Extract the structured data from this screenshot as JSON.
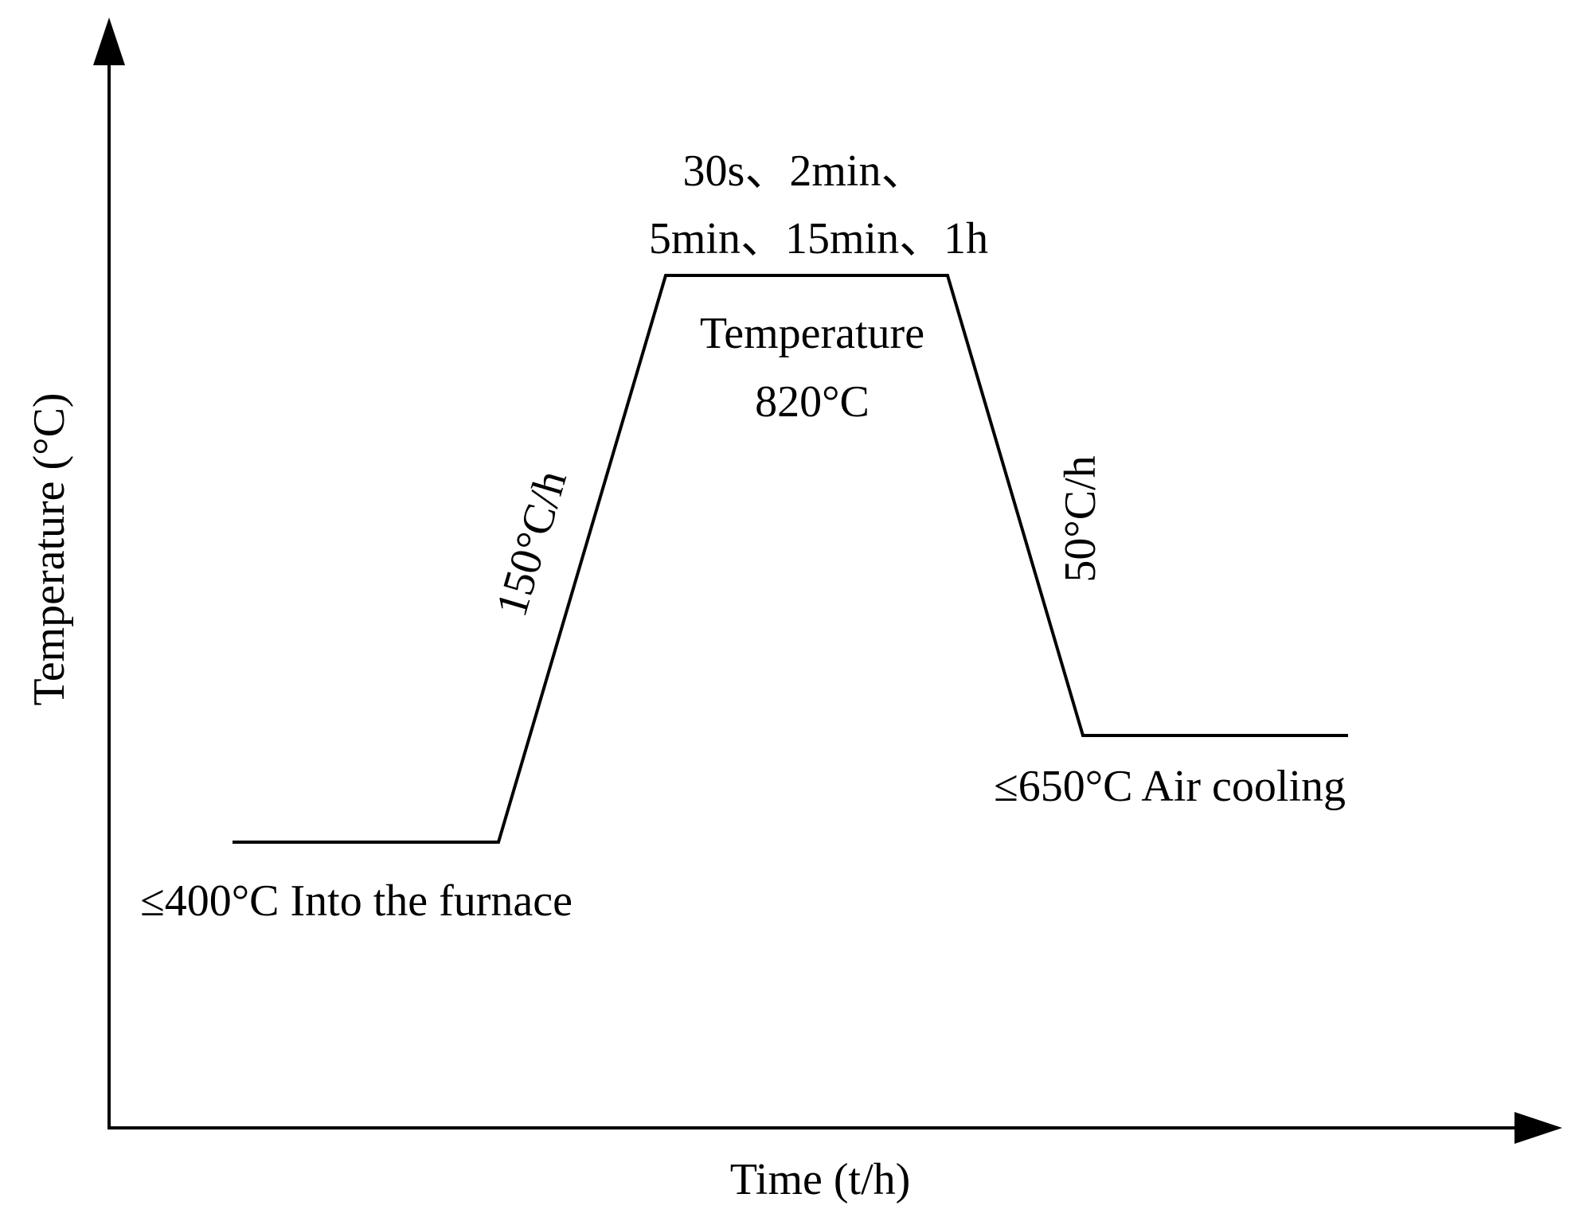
{
  "axes": {
    "y_label": "Temperature (°C)",
    "x_label": "Time (t/h)"
  },
  "annotations": {
    "hold_times_line1": "30s、2min、",
    "hold_times_line2": "5min、15min、1h",
    "hold_temp_line1": "Temperature",
    "hold_temp_line2": "820°C",
    "heating_rate": "150°C/h",
    "cooling_rate": "50°C/h",
    "start": "≤400°C Into the furnace",
    "end": "≤650°C Air cooling"
  },
  "colors": {
    "line": "#000000",
    "background": "#ffffff"
  }
}
